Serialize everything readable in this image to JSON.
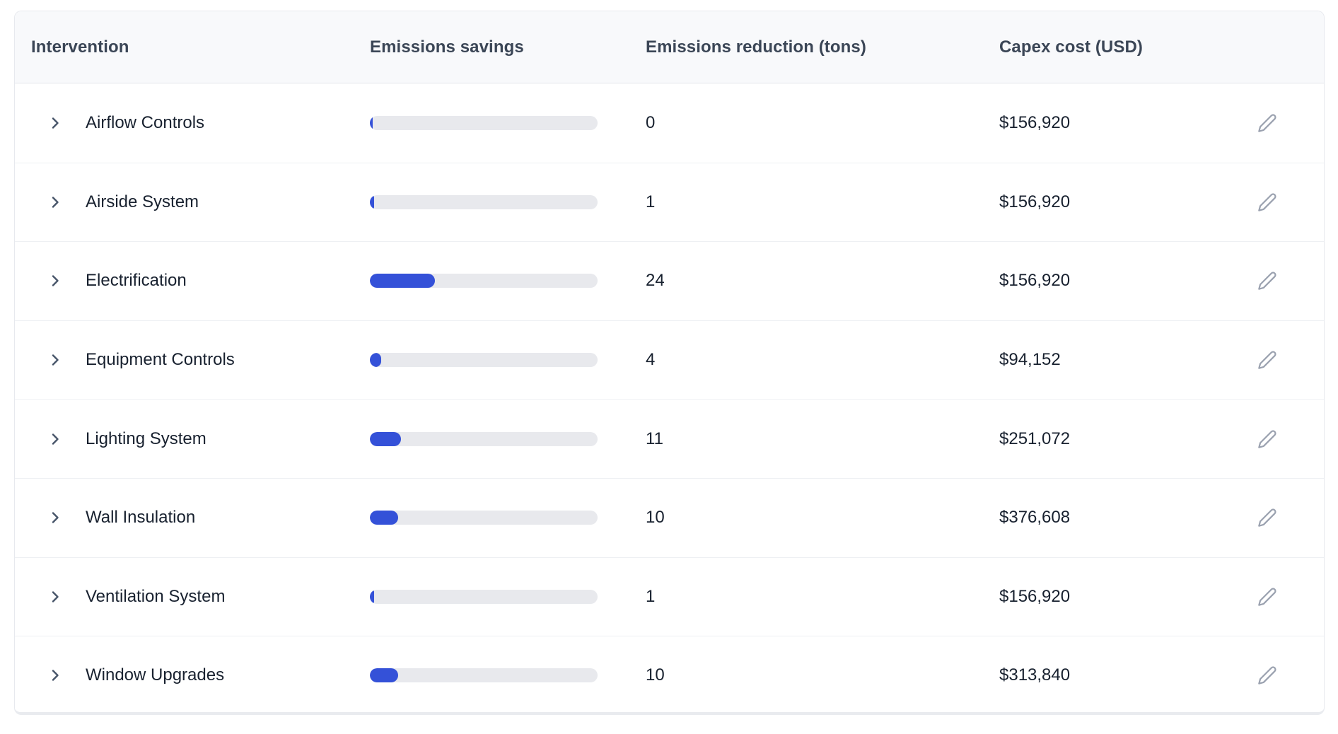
{
  "table": {
    "columns": [
      {
        "label": "Intervention"
      },
      {
        "label": "Emissions savings"
      },
      {
        "label": "Emissions reduction (tons)"
      },
      {
        "label": "Capex cost (USD)"
      }
    ],
    "rows": [
      {
        "name": "Airflow Controls",
        "bar_percent": 1.2,
        "reduction": "0",
        "capex": "$156,920"
      },
      {
        "name": "Airside System",
        "bar_percent": 1.8,
        "reduction": "1",
        "capex": "$156,920"
      },
      {
        "name": "Electrification",
        "bar_percent": 28.6,
        "reduction": "24",
        "capex": "$156,920"
      },
      {
        "name": "Equipment Controls",
        "bar_percent": 5.0,
        "reduction": "4",
        "capex": "$94,152"
      },
      {
        "name": "Lighting System",
        "bar_percent": 13.6,
        "reduction": "11",
        "capex": "$251,072"
      },
      {
        "name": "Wall Insulation",
        "bar_percent": 12.3,
        "reduction": "10",
        "capex": "$376,608"
      },
      {
        "name": "Ventilation System",
        "bar_percent": 1.8,
        "reduction": "1",
        "capex": "$156,920"
      },
      {
        "name": "Window Upgrades",
        "bar_percent": 12.3,
        "reduction": "10",
        "capex": "$313,840"
      }
    ]
  },
  "colors": {
    "bar_fill": "#3451d8",
    "bar_track": "#e8e9ed",
    "header_bg": "#f8f9fb",
    "text_dark": "#18212f"
  },
  "icons": {
    "expand": "chevron-right",
    "edit": "pencil"
  }
}
